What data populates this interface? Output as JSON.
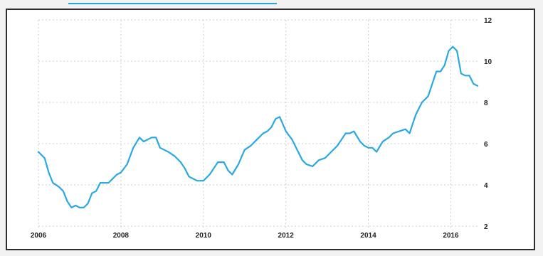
{
  "chart_data": {
    "type": "line",
    "title": "",
    "xlabel": "",
    "ylabel": "",
    "x_ticks": [
      "2006",
      "2008",
      "2010",
      "2012",
      "2014",
      "2016"
    ],
    "y_ticks": [
      "2",
      "4",
      "6",
      "8",
      "10",
      "12"
    ],
    "xlim": [
      2006,
      2016.7
    ],
    "ylim": [
      2,
      12
    ],
    "grid": true,
    "legend": "none",
    "series_color": "#2aa8e2",
    "x": [
      2006.0,
      2006.15,
      2006.25,
      2006.35,
      2006.5,
      2006.6,
      2006.7,
      2006.8,
      2006.9,
      2007.0,
      2007.1,
      2007.2,
      2007.3,
      2007.4,
      2007.5,
      2007.6,
      2007.7,
      2007.8,
      2007.9,
      2008.0,
      2008.15,
      2008.3,
      2008.45,
      2008.55,
      2008.65,
      2008.75,
      2008.85,
      2008.95,
      2009.05,
      2009.15,
      2009.3,
      2009.45,
      2009.55,
      2009.65,
      2009.75,
      2009.85,
      2010.0,
      2010.15,
      2010.25,
      2010.35,
      2010.5,
      2010.6,
      2010.7,
      2010.85,
      2011.0,
      2011.15,
      2011.3,
      2011.45,
      2011.55,
      2011.65,
      2011.75,
      2011.85,
      2012.0,
      2012.15,
      2012.3,
      2012.4,
      2012.5,
      2012.65,
      2012.8,
      2012.95,
      2013.1,
      2013.25,
      2013.35,
      2013.45,
      2013.55,
      2013.65,
      2013.8,
      2013.9,
      2014.0,
      2014.1,
      2014.2,
      2014.35,
      2014.5,
      2014.6,
      2014.75,
      2014.9,
      2015.0,
      2015.15,
      2015.3,
      2015.45,
      2015.55,
      2015.65,
      2015.75,
      2015.85,
      2015.95,
      2016.05,
      2016.15,
      2016.25,
      2016.35,
      2016.45,
      2016.55,
      2016.65
    ],
    "values": [
      5.6,
      5.3,
      4.6,
      4.1,
      3.9,
      3.7,
      3.2,
      2.9,
      3.0,
      2.9,
      2.9,
      3.1,
      3.6,
      3.7,
      4.1,
      4.1,
      4.1,
      4.3,
      4.5,
      4.6,
      5.0,
      5.8,
      6.3,
      6.1,
      6.2,
      6.3,
      6.3,
      5.8,
      5.7,
      5.6,
      5.4,
      5.1,
      4.8,
      4.4,
      4.3,
      4.2,
      4.2,
      4.5,
      4.8,
      5.1,
      5.1,
      4.7,
      4.5,
      5.0,
      5.7,
      5.9,
      6.2,
      6.5,
      6.6,
      6.8,
      7.2,
      7.3,
      6.6,
      6.2,
      5.6,
      5.2,
      5.0,
      4.9,
      5.2,
      5.3,
      5.6,
      5.9,
      6.2,
      6.5,
      6.5,
      6.6,
      6.1,
      5.9,
      5.8,
      5.8,
      5.6,
      6.1,
      6.3,
      6.5,
      6.6,
      6.7,
      6.5,
      7.4,
      8.0,
      8.3,
      8.9,
      9.5,
      9.5,
      9.8,
      10.5,
      10.7,
      10.5,
      9.4,
      9.3,
      9.3,
      8.9,
      8.8
    ]
  }
}
